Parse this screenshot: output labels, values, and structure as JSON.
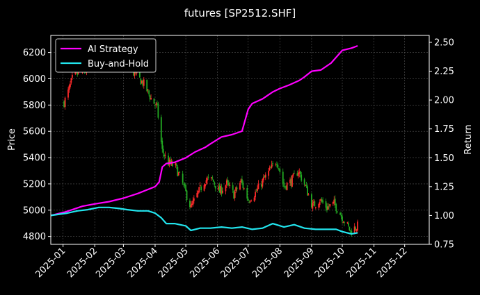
{
  "chart_data": {
    "type": "line",
    "title": "futures [SP2512.SHF]",
    "ylabel": "Price",
    "y2label": "Return",
    "xlim": [
      "2024-12-20",
      "2025-12-25"
    ],
    "ylim": [
      4740,
      6330
    ],
    "y2lim": [
      0.75,
      2.56
    ],
    "grid": true,
    "legend_position": "upper-left",
    "x_ticks": [
      "2025-01",
      "2025-02",
      "2025-03",
      "2025-04",
      "2025-05",
      "2025-06",
      "2025-07",
      "2025-08",
      "2025-09",
      "2025-10",
      "2025-11",
      "2025-12"
    ],
    "y_ticks": [
      4800,
      5000,
      5200,
      5400,
      5600,
      5800,
      6000,
      6200
    ],
    "y2_ticks": [
      0.75,
      1.0,
      1.25,
      1.5,
      1.75,
      2.0,
      2.25,
      2.5
    ],
    "colors": {
      "up": "#ff2a2a",
      "down": "#22aa22",
      "ai": "#ff00ff",
      "bh": "#22e5ee",
      "grid": "#555555"
    },
    "price_path": [
      [
        "2025-01-02",
        5820
      ],
      [
        "2025-01-06",
        5900
      ],
      [
        "2025-01-10",
        6000
      ],
      [
        "2025-01-17",
        6050
      ],
      [
        "2025-01-24",
        6060
      ],
      [
        "2025-02-07",
        6150
      ],
      [
        "2025-02-14",
        6230
      ],
      [
        "2025-02-21",
        6200
      ],
      [
        "2025-02-28",
        6120
      ],
      [
        "2025-03-07",
        6080
      ],
      [
        "2025-03-14",
        6020
      ],
      [
        "2025-03-21",
        5960
      ],
      [
        "2025-03-28",
        5850
      ],
      [
        "2025-04-03",
        5780
      ],
      [
        "2025-04-08",
        5450
      ],
      [
        "2025-04-14",
        5360
      ],
      [
        "2025-04-21",
        5330
      ],
      [
        "2025-04-28",
        5200
      ],
      [
        "2025-05-06",
        5020
      ],
      [
        "2025-05-13",
        5130
      ],
      [
        "2025-05-20",
        5230
      ],
      [
        "2025-05-27",
        5230
      ],
      [
        "2025-06-03",
        5140
      ],
      [
        "2025-06-10",
        5200
      ],
      [
        "2025-06-17",
        5120
      ],
      [
        "2025-06-24",
        5220
      ],
      [
        "2025-07-01",
        5080
      ],
      [
        "2025-07-08",
        5130
      ],
      [
        "2025-07-15",
        5220
      ],
      [
        "2025-07-22",
        5300
      ],
      [
        "2025-07-29",
        5380
      ],
      [
        "2025-08-05",
        5180
      ],
      [
        "2025-08-12",
        5220
      ],
      [
        "2025-08-19",
        5300
      ],
      [
        "2025-08-26",
        5180
      ],
      [
        "2025-09-02",
        5030
      ],
      [
        "2025-09-09",
        5080
      ],
      [
        "2025-09-16",
        5020
      ],
      [
        "2025-09-23",
        5050
      ],
      [
        "2025-09-30",
        4960
      ],
      [
        "2025-10-09",
        4840
      ],
      [
        "2025-10-16",
        4880
      ]
    ],
    "series": [
      {
        "name": "AI Strategy",
        "points": [
          [
            "2024-12-20",
            1.0
          ],
          [
            "2025-01-03",
            1.03
          ],
          [
            "2025-01-10",
            1.05
          ],
          [
            "2025-01-20",
            1.08
          ],
          [
            "2025-02-01",
            1.1
          ],
          [
            "2025-02-15",
            1.12
          ],
          [
            "2025-03-01",
            1.15
          ],
          [
            "2025-03-15",
            1.19
          ],
          [
            "2025-04-01",
            1.25
          ],
          [
            "2025-04-05",
            1.29
          ],
          [
            "2025-04-08",
            1.42
          ],
          [
            "2025-04-12",
            1.45
          ],
          [
            "2025-04-20",
            1.46
          ],
          [
            "2025-05-01",
            1.5
          ],
          [
            "2025-05-10",
            1.55
          ],
          [
            "2025-05-20",
            1.59
          ],
          [
            "2025-05-25",
            1.62
          ],
          [
            "2025-06-05",
            1.68
          ],
          [
            "2025-06-15",
            1.7
          ],
          [
            "2025-06-25",
            1.73
          ],
          [
            "2025-07-01",
            1.92
          ],
          [
            "2025-07-05",
            1.97
          ],
          [
            "2025-07-15",
            2.01
          ],
          [
            "2025-07-25",
            2.07
          ],
          [
            "2025-08-01",
            2.1
          ],
          [
            "2025-08-10",
            2.13
          ],
          [
            "2025-08-20",
            2.17
          ],
          [
            "2025-08-25",
            2.2
          ],
          [
            "2025-09-01",
            2.25
          ],
          [
            "2025-09-10",
            2.26
          ],
          [
            "2025-09-20",
            2.32
          ],
          [
            "2025-10-01",
            2.43
          ],
          [
            "2025-10-10",
            2.45
          ],
          [
            "2025-10-16",
            2.47
          ]
        ]
      },
      {
        "name": "Buy-and-Hold",
        "points": [
          [
            "2024-12-20",
            1.0
          ],
          [
            "2025-01-05",
            1.02
          ],
          [
            "2025-01-15",
            1.04
          ],
          [
            "2025-01-25",
            1.05
          ],
          [
            "2025-02-05",
            1.07
          ],
          [
            "2025-02-15",
            1.07
          ],
          [
            "2025-02-25",
            1.06
          ],
          [
            "2025-03-05",
            1.05
          ],
          [
            "2025-03-15",
            1.04
          ],
          [
            "2025-03-25",
            1.04
          ],
          [
            "2025-04-01",
            1.02
          ],
          [
            "2025-04-07",
            0.98
          ],
          [
            "2025-04-12",
            0.93
          ],
          [
            "2025-04-20",
            0.93
          ],
          [
            "2025-05-01",
            0.91
          ],
          [
            "2025-05-06",
            0.87
          ],
          [
            "2025-05-15",
            0.89
          ],
          [
            "2025-05-25",
            0.89
          ],
          [
            "2025-06-05",
            0.9
          ],
          [
            "2025-06-15",
            0.89
          ],
          [
            "2025-06-25",
            0.9
          ],
          [
            "2025-07-05",
            0.88
          ],
          [
            "2025-07-15",
            0.89
          ],
          [
            "2025-07-25",
            0.93
          ],
          [
            "2025-08-05",
            0.9
          ],
          [
            "2025-08-15",
            0.92
          ],
          [
            "2025-08-25",
            0.89
          ],
          [
            "2025-09-05",
            0.88
          ],
          [
            "2025-09-15",
            0.88
          ],
          [
            "2025-09-25",
            0.88
          ],
          [
            "2025-10-01",
            0.86
          ],
          [
            "2025-10-10",
            0.84
          ],
          [
            "2025-10-16",
            0.85
          ]
        ]
      }
    ]
  }
}
